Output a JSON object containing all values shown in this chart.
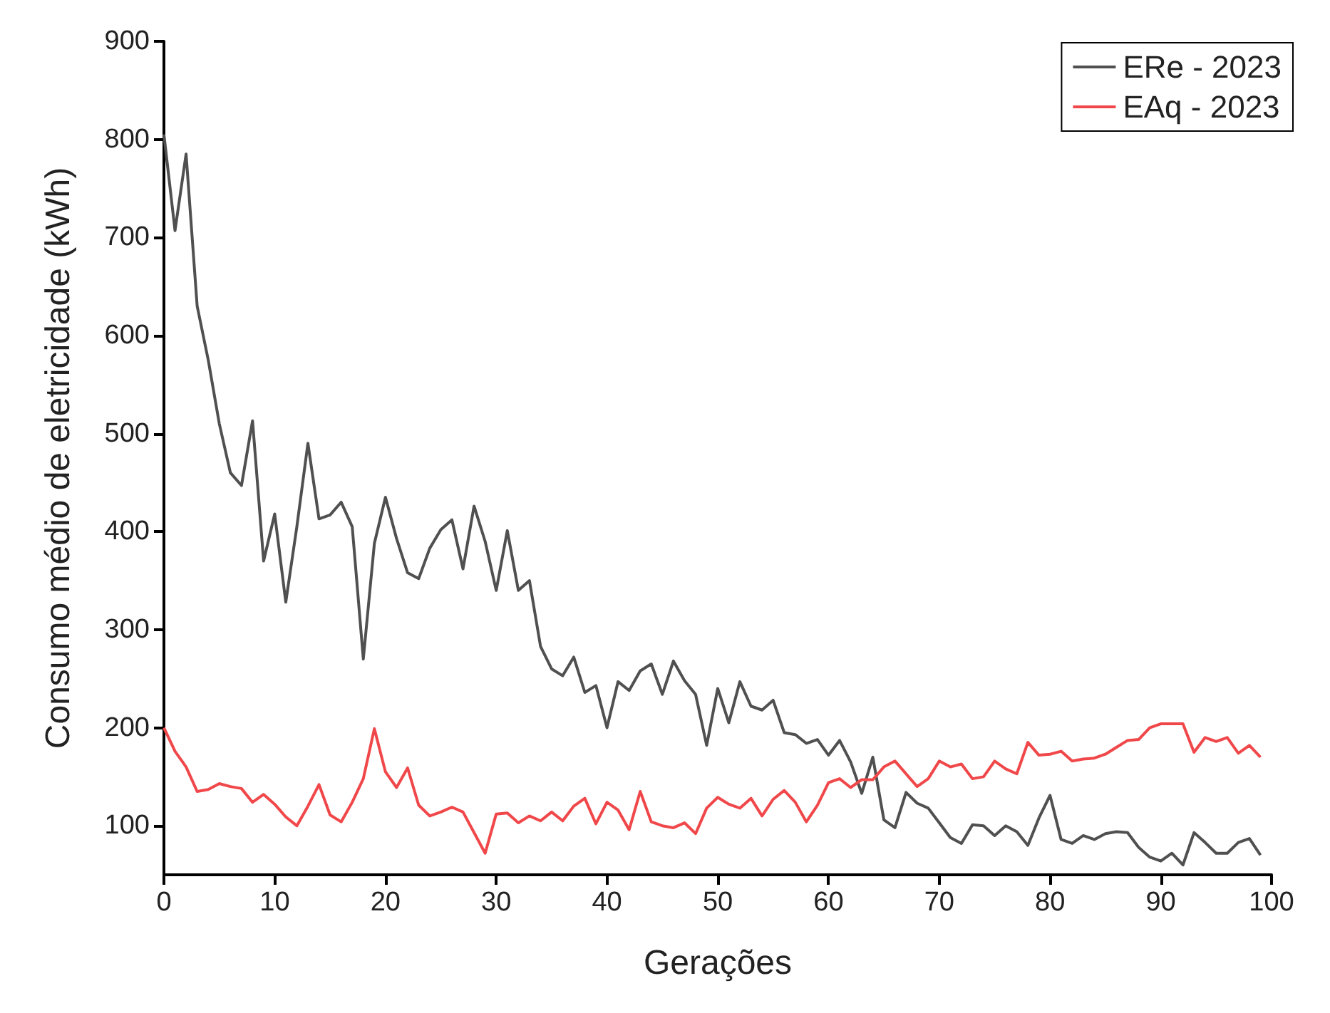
{
  "chart_data": {
    "type": "line",
    "xlabel": "Gerações",
    "ylabel": "Consumo médio de eletricidade (kWh)",
    "x": [
      0,
      1,
      2,
      3,
      4,
      5,
      6,
      7,
      8,
      9,
      10,
      11,
      12,
      13,
      14,
      15,
      16,
      17,
      18,
      19,
      20,
      21,
      22,
      23,
      24,
      25,
      26,
      27,
      28,
      29,
      30,
      31,
      32,
      33,
      34,
      35,
      36,
      37,
      38,
      39,
      40,
      41,
      42,
      43,
      44,
      45,
      46,
      47,
      48,
      49,
      50,
      51,
      52,
      53,
      54,
      55,
      56,
      57,
      58,
      59,
      60,
      61,
      62,
      63,
      64,
      65,
      66,
      67,
      68,
      69,
      70,
      71,
      72,
      73,
      74,
      75,
      76,
      77,
      78,
      79,
      80,
      81,
      82,
      83,
      84,
      85,
      86,
      87,
      88,
      89,
      90,
      91,
      92,
      93,
      94,
      95,
      96,
      97,
      98,
      99
    ],
    "series": [
      {
        "name": "ERe - 2023",
        "color": "#505050",
        "values": [
          805,
          707,
          785,
          630,
          575,
          510,
          460,
          447,
          513,
          370,
          418,
          328,
          405,
          490,
          413,
          417,
          430,
          405,
          270,
          388,
          435,
          393,
          358,
          352,
          383,
          402,
          412,
          362,
          426,
          390,
          340,
          401,
          340,
          350,
          283,
          260,
          253,
          272,
          236,
          243,
          200,
          247,
          238,
          258,
          265,
          234,
          268,
          248,
          234,
          182,
          240,
          205,
          247,
          222,
          218,
          228,
          195,
          193,
          184,
          188,
          172,
          187,
          165,
          133,
          170,
          106,
          98,
          134,
          123,
          118,
          103,
          88,
          82,
          101,
          100,
          90,
          100,
          94,
          80,
          108,
          131,
          86,
          82,
          90,
          86,
          92,
          94,
          93,
          78,
          68,
          64,
          72,
          60,
          93,
          83,
          72,
          72,
          83,
          87,
          70
        ]
      },
      {
        "name": "EAq - 2023",
        "color": "#f0484a",
        "values": [
          200,
          176,
          160,
          135,
          137,
          143,
          140,
          138,
          124,
          132,
          122,
          109,
          100,
          120,
          142,
          111,
          104,
          124,
          148,
          199,
          155,
          139,
          159,
          121,
          110,
          114,
          119,
          114,
          93,
          72,
          112,
          113,
          103,
          110,
          105,
          114,
          105,
          120,
          128,
          102,
          124,
          116,
          96,
          135,
          104,
          100,
          98,
          103,
          92,
          118,
          129,
          122,
          118,
          128,
          110,
          127,
          136,
          124,
          104,
          121,
          144,
          148,
          139,
          147,
          147,
          160,
          166,
          153,
          140,
          148,
          166,
          160,
          163,
          148,
          150,
          166,
          158,
          153,
          185,
          172,
          173,
          176,
          166,
          168,
          169,
          173,
          180,
          187,
          188,
          200,
          204,
          204,
          204,
          175,
          190,
          186,
          190,
          174,
          182,
          170
        ]
      }
    ],
    "xlim": [
      0,
      100
    ],
    "xticks": [
      0,
      10,
      20,
      30,
      40,
      50,
      60,
      70,
      80,
      90,
      100
    ],
    "ylim": [
      50,
      900
    ],
    "yticks": [
      100,
      200,
      300,
      400,
      500,
      600,
      700,
      800,
      900
    ],
    "grid": false,
    "legend": "top right",
    "marker": "none",
    "line_style": "solid"
  }
}
